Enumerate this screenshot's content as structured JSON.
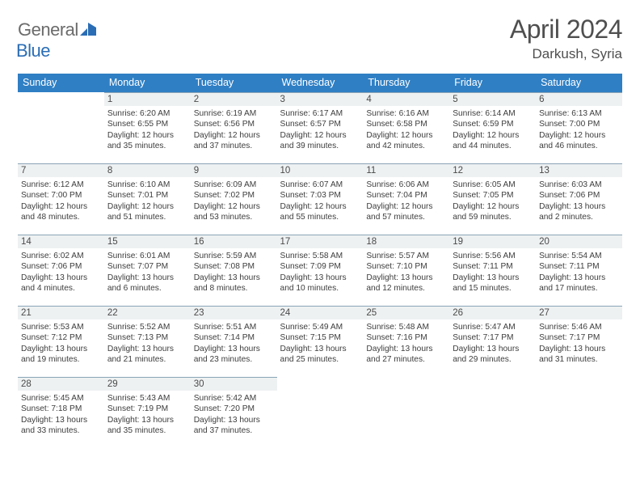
{
  "brand": {
    "part1": "General",
    "part2": "Blue"
  },
  "title": "April 2024",
  "location": "Darkush, Syria",
  "colors": {
    "header_bg": "#2f7fc4",
    "header_fg": "#ffffff",
    "daynum_bg": "#eef1f2",
    "daynum_border": "#8aa5b6",
    "text": "#3d3d3d",
    "title_fg": "#4f4f4f"
  },
  "weekdays": [
    "Sunday",
    "Monday",
    "Tuesday",
    "Wednesday",
    "Thursday",
    "Friday",
    "Saturday"
  ],
  "weeks": [
    [
      null,
      {
        "n": "1",
        "sr": "6:20 AM",
        "ss": "6:55 PM",
        "dl1": "12 hours",
        "dl2": "and 35 minutes."
      },
      {
        "n": "2",
        "sr": "6:19 AM",
        "ss": "6:56 PM",
        "dl1": "12 hours",
        "dl2": "and 37 minutes."
      },
      {
        "n": "3",
        "sr": "6:17 AM",
        "ss": "6:57 PM",
        "dl1": "12 hours",
        "dl2": "and 39 minutes."
      },
      {
        "n": "4",
        "sr": "6:16 AM",
        "ss": "6:58 PM",
        "dl1": "12 hours",
        "dl2": "and 42 minutes."
      },
      {
        "n": "5",
        "sr": "6:14 AM",
        "ss": "6:59 PM",
        "dl1": "12 hours",
        "dl2": "and 44 minutes."
      },
      {
        "n": "6",
        "sr": "6:13 AM",
        "ss": "7:00 PM",
        "dl1": "12 hours",
        "dl2": "and 46 minutes."
      }
    ],
    [
      {
        "n": "7",
        "sr": "6:12 AM",
        "ss": "7:00 PM",
        "dl1": "12 hours",
        "dl2": "and 48 minutes."
      },
      {
        "n": "8",
        "sr": "6:10 AM",
        "ss": "7:01 PM",
        "dl1": "12 hours",
        "dl2": "and 51 minutes."
      },
      {
        "n": "9",
        "sr": "6:09 AM",
        "ss": "7:02 PM",
        "dl1": "12 hours",
        "dl2": "and 53 minutes."
      },
      {
        "n": "10",
        "sr": "6:07 AM",
        "ss": "7:03 PM",
        "dl1": "12 hours",
        "dl2": "and 55 minutes."
      },
      {
        "n": "11",
        "sr": "6:06 AM",
        "ss": "7:04 PM",
        "dl1": "12 hours",
        "dl2": "and 57 minutes."
      },
      {
        "n": "12",
        "sr": "6:05 AM",
        "ss": "7:05 PM",
        "dl1": "12 hours",
        "dl2": "and 59 minutes."
      },
      {
        "n": "13",
        "sr": "6:03 AM",
        "ss": "7:06 PM",
        "dl1": "13 hours",
        "dl2": "and 2 minutes."
      }
    ],
    [
      {
        "n": "14",
        "sr": "6:02 AM",
        "ss": "7:06 PM",
        "dl1": "13 hours",
        "dl2": "and 4 minutes."
      },
      {
        "n": "15",
        "sr": "6:01 AM",
        "ss": "7:07 PM",
        "dl1": "13 hours",
        "dl2": "and 6 minutes."
      },
      {
        "n": "16",
        "sr": "5:59 AM",
        "ss": "7:08 PM",
        "dl1": "13 hours",
        "dl2": "and 8 minutes."
      },
      {
        "n": "17",
        "sr": "5:58 AM",
        "ss": "7:09 PM",
        "dl1": "13 hours",
        "dl2": "and 10 minutes."
      },
      {
        "n": "18",
        "sr": "5:57 AM",
        "ss": "7:10 PM",
        "dl1": "13 hours",
        "dl2": "and 12 minutes."
      },
      {
        "n": "19",
        "sr": "5:56 AM",
        "ss": "7:11 PM",
        "dl1": "13 hours",
        "dl2": "and 15 minutes."
      },
      {
        "n": "20",
        "sr": "5:54 AM",
        "ss": "7:11 PM",
        "dl1": "13 hours",
        "dl2": "and 17 minutes."
      }
    ],
    [
      {
        "n": "21",
        "sr": "5:53 AM",
        "ss": "7:12 PM",
        "dl1": "13 hours",
        "dl2": "and 19 minutes."
      },
      {
        "n": "22",
        "sr": "5:52 AM",
        "ss": "7:13 PM",
        "dl1": "13 hours",
        "dl2": "and 21 minutes."
      },
      {
        "n": "23",
        "sr": "5:51 AM",
        "ss": "7:14 PM",
        "dl1": "13 hours",
        "dl2": "and 23 minutes."
      },
      {
        "n": "24",
        "sr": "5:49 AM",
        "ss": "7:15 PM",
        "dl1": "13 hours",
        "dl2": "and 25 minutes."
      },
      {
        "n": "25",
        "sr": "5:48 AM",
        "ss": "7:16 PM",
        "dl1": "13 hours",
        "dl2": "and 27 minutes."
      },
      {
        "n": "26",
        "sr": "5:47 AM",
        "ss": "7:17 PM",
        "dl1": "13 hours",
        "dl2": "and 29 minutes."
      },
      {
        "n": "27",
        "sr": "5:46 AM",
        "ss": "7:17 PM",
        "dl1": "13 hours",
        "dl2": "and 31 minutes."
      }
    ],
    [
      {
        "n": "28",
        "sr": "5:45 AM",
        "ss": "7:18 PM",
        "dl1": "13 hours",
        "dl2": "and 33 minutes."
      },
      {
        "n": "29",
        "sr": "5:43 AM",
        "ss": "7:19 PM",
        "dl1": "13 hours",
        "dl2": "and 35 minutes."
      },
      {
        "n": "30",
        "sr": "5:42 AM",
        "ss": "7:20 PM",
        "dl1": "13 hours",
        "dl2": "and 37 minutes."
      },
      null,
      null,
      null,
      null
    ]
  ],
  "labels": {
    "sunrise": "Sunrise:",
    "sunset": "Sunset:",
    "daylight": "Daylight:"
  }
}
